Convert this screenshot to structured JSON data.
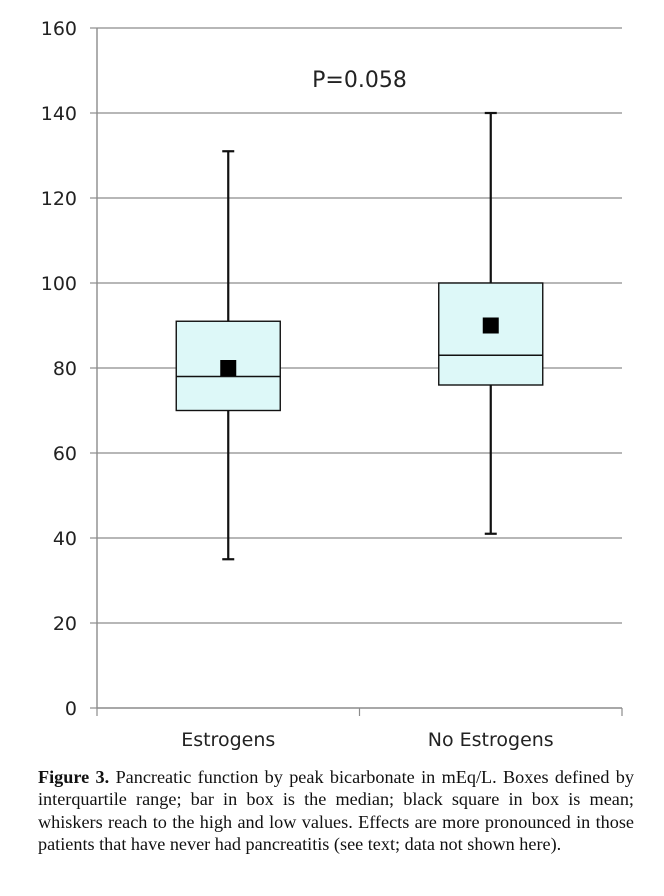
{
  "chart_data": {
    "type": "box",
    "title": "",
    "xlabel": "",
    "ylabel": "",
    "ylim": [
      0,
      160
    ],
    "yticks": [
      0,
      20,
      40,
      60,
      80,
      100,
      120,
      140,
      160
    ],
    "y_tick_labels": [
      "0",
      "20",
      "40",
      "60",
      "80",
      "100",
      "120",
      "140",
      "160"
    ],
    "grid": true,
    "categories": [
      "Estrogens",
      "No Estrogens"
    ],
    "boxes": [
      {
        "name": "Estrogens",
        "min": 35,
        "q1": 70,
        "median": 78,
        "q3": 91,
        "max": 131,
        "mean": 80
      },
      {
        "name": "No Estrogens",
        "min": 41,
        "q1": 76,
        "median": 83,
        "q3": 100,
        "max": 140,
        "mean": 90
      }
    ],
    "annotations": [
      {
        "text": "P=0.058",
        "x": 1.5,
        "y": 148
      }
    ],
    "colors": {
      "box_fill": "#ddf8f8",
      "box_stroke": "#111111",
      "mean_marker": "#000000",
      "grid": "#8c8c8c",
      "axis": "#8c8c8c"
    }
  },
  "caption": {
    "label": "Figure 3.",
    "text": " Pancreatic function by peak bicarbonate in mEq/L. Boxes defined by interquartile range; bar in box is the median; black square in box is mean; whiskers reach to the high and low values. Effects are more pronounced in those patients that have never had pancreatitis (see text; data not shown here)."
  }
}
